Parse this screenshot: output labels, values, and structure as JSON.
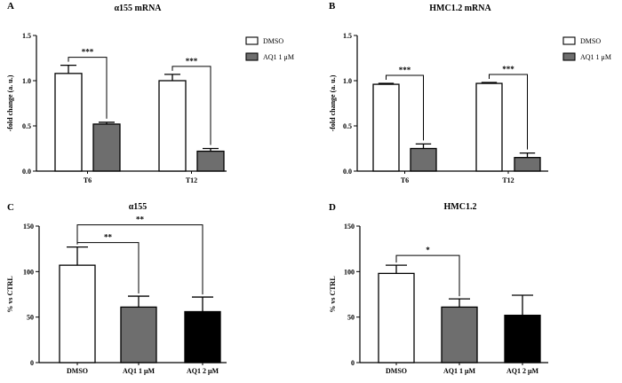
{
  "chart_data": [
    {
      "panel": "A",
      "type": "bar",
      "title": "α155 mRNA",
      "ylabel": "-fold change (a. u.)",
      "ylim": [
        0,
        1.5
      ],
      "yticks": [
        "0.0",
        "0.5",
        "1.0",
        "1.5"
      ],
      "categories": [
        "T6",
        "T12"
      ],
      "series": [
        {
          "name": "DMSO",
          "color": "#ffffff",
          "values": [
            1.08,
            1.0
          ],
          "errors": [
            0.09,
            0.07
          ]
        },
        {
          "name": "AQ1 1 μM",
          "color": "#6e6e6e",
          "values": [
            0.52,
            0.22
          ],
          "errors": [
            0.02,
            0.03
          ]
        }
      ],
      "legend": [
        "DMSO",
        "AQ1 1 μM"
      ],
      "significance": [
        "***",
        "***"
      ]
    },
    {
      "panel": "B",
      "type": "bar",
      "title": "HMC1.2 mRNA",
      "ylabel": "-fold change (a. u.)",
      "ylim": [
        0,
        1.5
      ],
      "yticks": [
        "0.0",
        "0.5",
        "1.0",
        "1.5"
      ],
      "categories": [
        "T6",
        "T12"
      ],
      "series": [
        {
          "name": "DMSO",
          "color": "#ffffff",
          "values": [
            0.96,
            0.97
          ],
          "errors": [
            0.01,
            0.01
          ]
        },
        {
          "name": "AQ1 1 μM",
          "color": "#6e6e6e",
          "values": [
            0.25,
            0.15
          ],
          "errors": [
            0.05,
            0.05
          ]
        }
      ],
      "legend": [
        "DMSO",
        "AQ1 1 μM"
      ],
      "significance": [
        "***",
        "***"
      ]
    },
    {
      "panel": "C",
      "type": "bar",
      "title": "α155",
      "ylabel": "% vs CTRL",
      "ylim": [
        0,
        150
      ],
      "yticks": [
        "0",
        "50",
        "100",
        "150"
      ],
      "categories": [
        "DMSO",
        "AQ1 1  μM",
        "AQ1 2  μM"
      ],
      "values": [
        107,
        61,
        56
      ],
      "errors": [
        20,
        12,
        16
      ],
      "colors": [
        "#ffffff",
        "#6e6e6e",
        "#000000"
      ],
      "significance": [
        {
          "from": 0,
          "to": 1,
          "label": "**"
        },
        {
          "from": 0,
          "to": 2,
          "label": "**"
        }
      ]
    },
    {
      "panel": "D",
      "type": "bar",
      "title": "HMC1.2",
      "ylabel": "% vs CTRL",
      "ylim": [
        0,
        150
      ],
      "yticks": [
        "0",
        "50",
        "100",
        "150"
      ],
      "categories": [
        "DMSO",
        "AQ1 1  μM",
        "AQ1 2  μM"
      ],
      "values": [
        98,
        61,
        52
      ],
      "errors": [
        9,
        9,
        22
      ],
      "colors": [
        "#ffffff",
        "#6e6e6e",
        "#000000"
      ],
      "significance": [
        {
          "from": 0,
          "to": 1,
          "label": "*"
        }
      ]
    }
  ]
}
